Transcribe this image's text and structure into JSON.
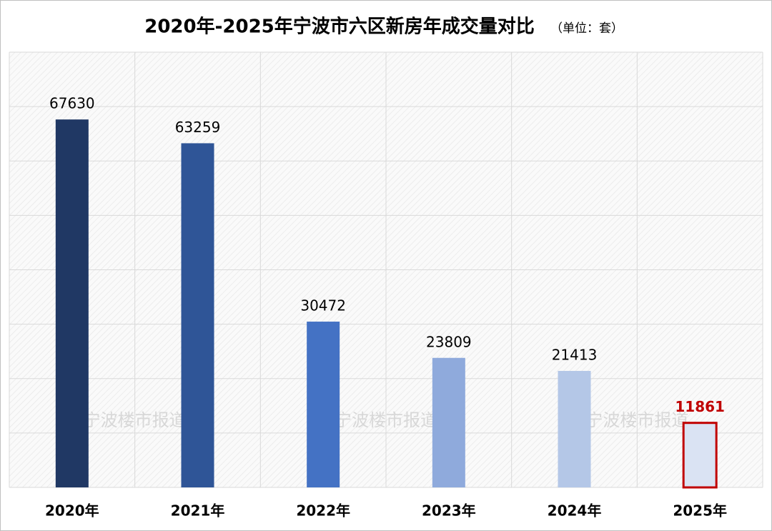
{
  "chart_data": {
    "type": "bar",
    "title": "2020年-2025年宁波市六区新房年成交量对比",
    "subtitle": "（单位：套）",
    "watermark": "宁波楼市报道",
    "categories": [
      "2020年",
      "2021年",
      "2022年",
      "2023年",
      "2024年",
      "2025年"
    ],
    "values": [
      67630,
      63259,
      30472,
      23809,
      21413,
      11861
    ],
    "colors": [
      "#203864",
      "#2f5597",
      "#4472c4",
      "#8faadc",
      "#b4c7e7",
      "#dae3f3"
    ],
    "highlight": {
      "index": 5,
      "border_color": "#c00000",
      "label_color": "#c00000"
    },
    "ylim": [
      0,
      80000
    ],
    "yticks": [
      0,
      10000,
      20000,
      30000,
      40000,
      50000,
      60000,
      70000,
      80000
    ],
    "grid": true
  }
}
